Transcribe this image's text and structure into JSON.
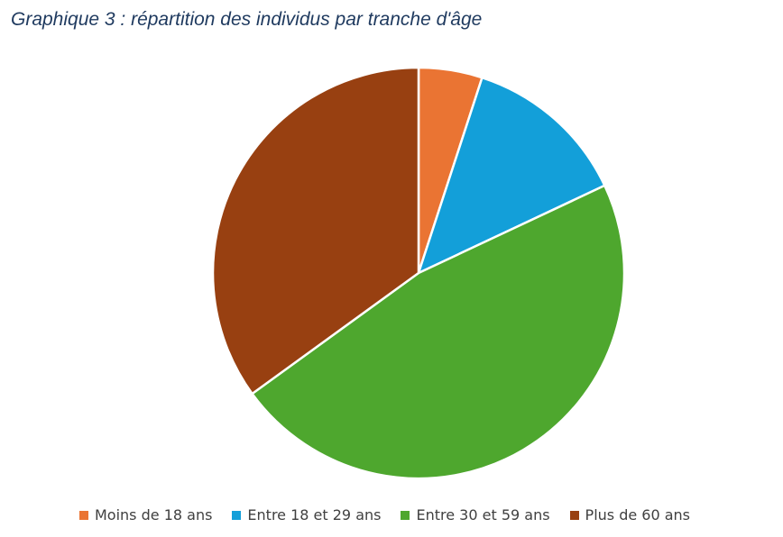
{
  "chart_data": {
    "type": "pie",
    "title": "Graphique 3 : répartition des individus par tranche d'âge",
    "categories": [
      "Moins de 18 ans",
      "Entre 18 et 29 ans",
      "Entre 30 et 59 ans",
      "Plus de 60 ans"
    ],
    "values": [
      5,
      13,
      47,
      35
    ],
    "colors": [
      "#ea7433",
      "#139fd9",
      "#4ea72e",
      "#984011"
    ],
    "legend_position": "bottom",
    "start_angle": "top, clockwise"
  }
}
